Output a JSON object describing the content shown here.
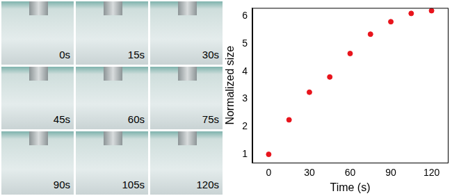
{
  "panels": [
    "0s",
    "15s",
    "30s",
    "45s",
    "60s",
    "75s",
    "90s",
    "105s",
    "120s"
  ],
  "chart_data": {
    "type": "scatter",
    "x_label": "Time (s)",
    "y_label": "Normalized size",
    "x": [
      0,
      15,
      30,
      45,
      60,
      75,
      90,
      105,
      120
    ],
    "values": [
      1.0,
      2.25,
      3.25,
      3.8,
      4.65,
      5.35,
      5.8,
      6.1,
      6.2
    ],
    "color": "#e8141c",
    "marker": "circle",
    "xlim": [
      -12,
      132
    ],
    "xticks": [
      0,
      30,
      60,
      90,
      120
    ],
    "ylim": [
      0.7,
      6.3
    ],
    "yticks": [
      1,
      2,
      3,
      4,
      5,
      6
    ],
    "grid": false
  }
}
